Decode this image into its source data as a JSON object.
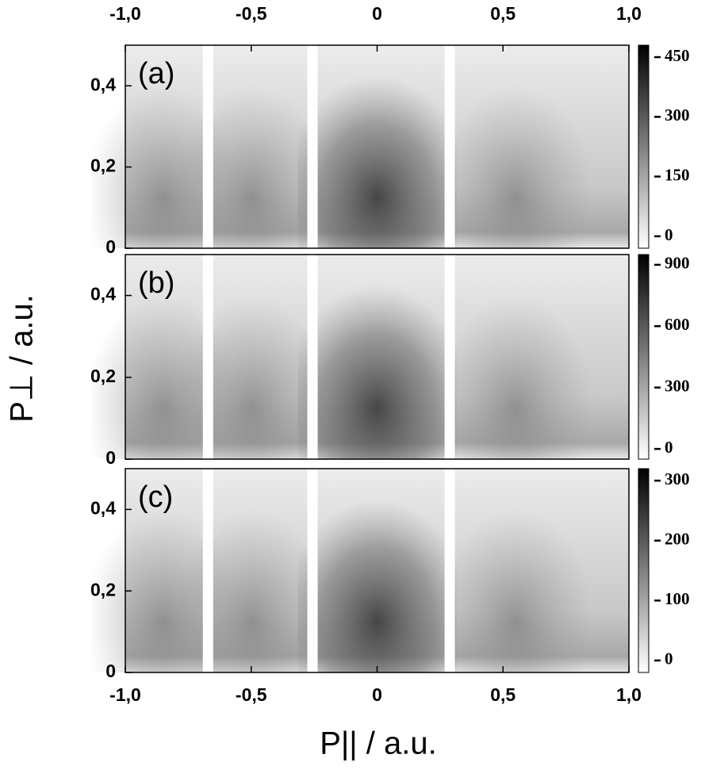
{
  "chart_data": [
    {
      "type": "heatmap",
      "label": "(a)",
      "xlim": [
        -1,
        1
      ],
      "xticks": [
        {
          "value": -1,
          "label": "-1,0"
        },
        {
          "value": -0.5,
          "label": "-0,5"
        },
        0,
        {
          "value": 0.5,
          "label": "0,5"
        },
        {
          "value": 1,
          "label": "1,0"
        }
      ],
      "ylim": [
        0,
        0.5
      ],
      "yticks": [
        0,
        {
          "value": 0.2,
          "label": "0,2"
        },
        {
          "value": 0.4,
          "label": "0,4"
        }
      ],
      "zlim": [
        -30,
        480
      ],
      "zticks": [
        0,
        150,
        300,
        450
      ]
    },
    {
      "type": "heatmap",
      "label": "(b)",
      "y_label": "P⊥ / a.u.",
      "xlim": [
        -1,
        1
      ],
      "ylim": [
        0,
        0.5
      ],
      "yticks": [
        0,
        {
          "value": 0.2,
          "label": "0,2"
        },
        {
          "value": 0.4,
          "label": "0,4"
        }
      ],
      "zlim": [
        -50,
        950
      ],
      "zticks": [
        0,
        300,
        600,
        900
      ]
    },
    {
      "type": "heatmap",
      "label": "(c)",
      "x_label": "P|| / a.u.",
      "xlim": [
        -1,
        1
      ],
      "xticks": [
        {
          "value": -1,
          "label": "-1,0"
        },
        {
          "value": -0.5,
          "label": "-0,5"
        },
        0,
        {
          "value": 0.5,
          "label": "0,5"
        },
        {
          "value": 1,
          "label": "1,0"
        }
      ],
      "ylim": [
        0,
        0.5
      ],
      "yticks": [
        0,
        {
          "value": 0.2,
          "label": "0,2"
        },
        {
          "value": 0.4,
          "label": "0,4"
        }
      ],
      "zlim": [
        -20,
        320
      ],
      "zticks": [
        0,
        100,
        200,
        300
      ]
    }
  ]
}
